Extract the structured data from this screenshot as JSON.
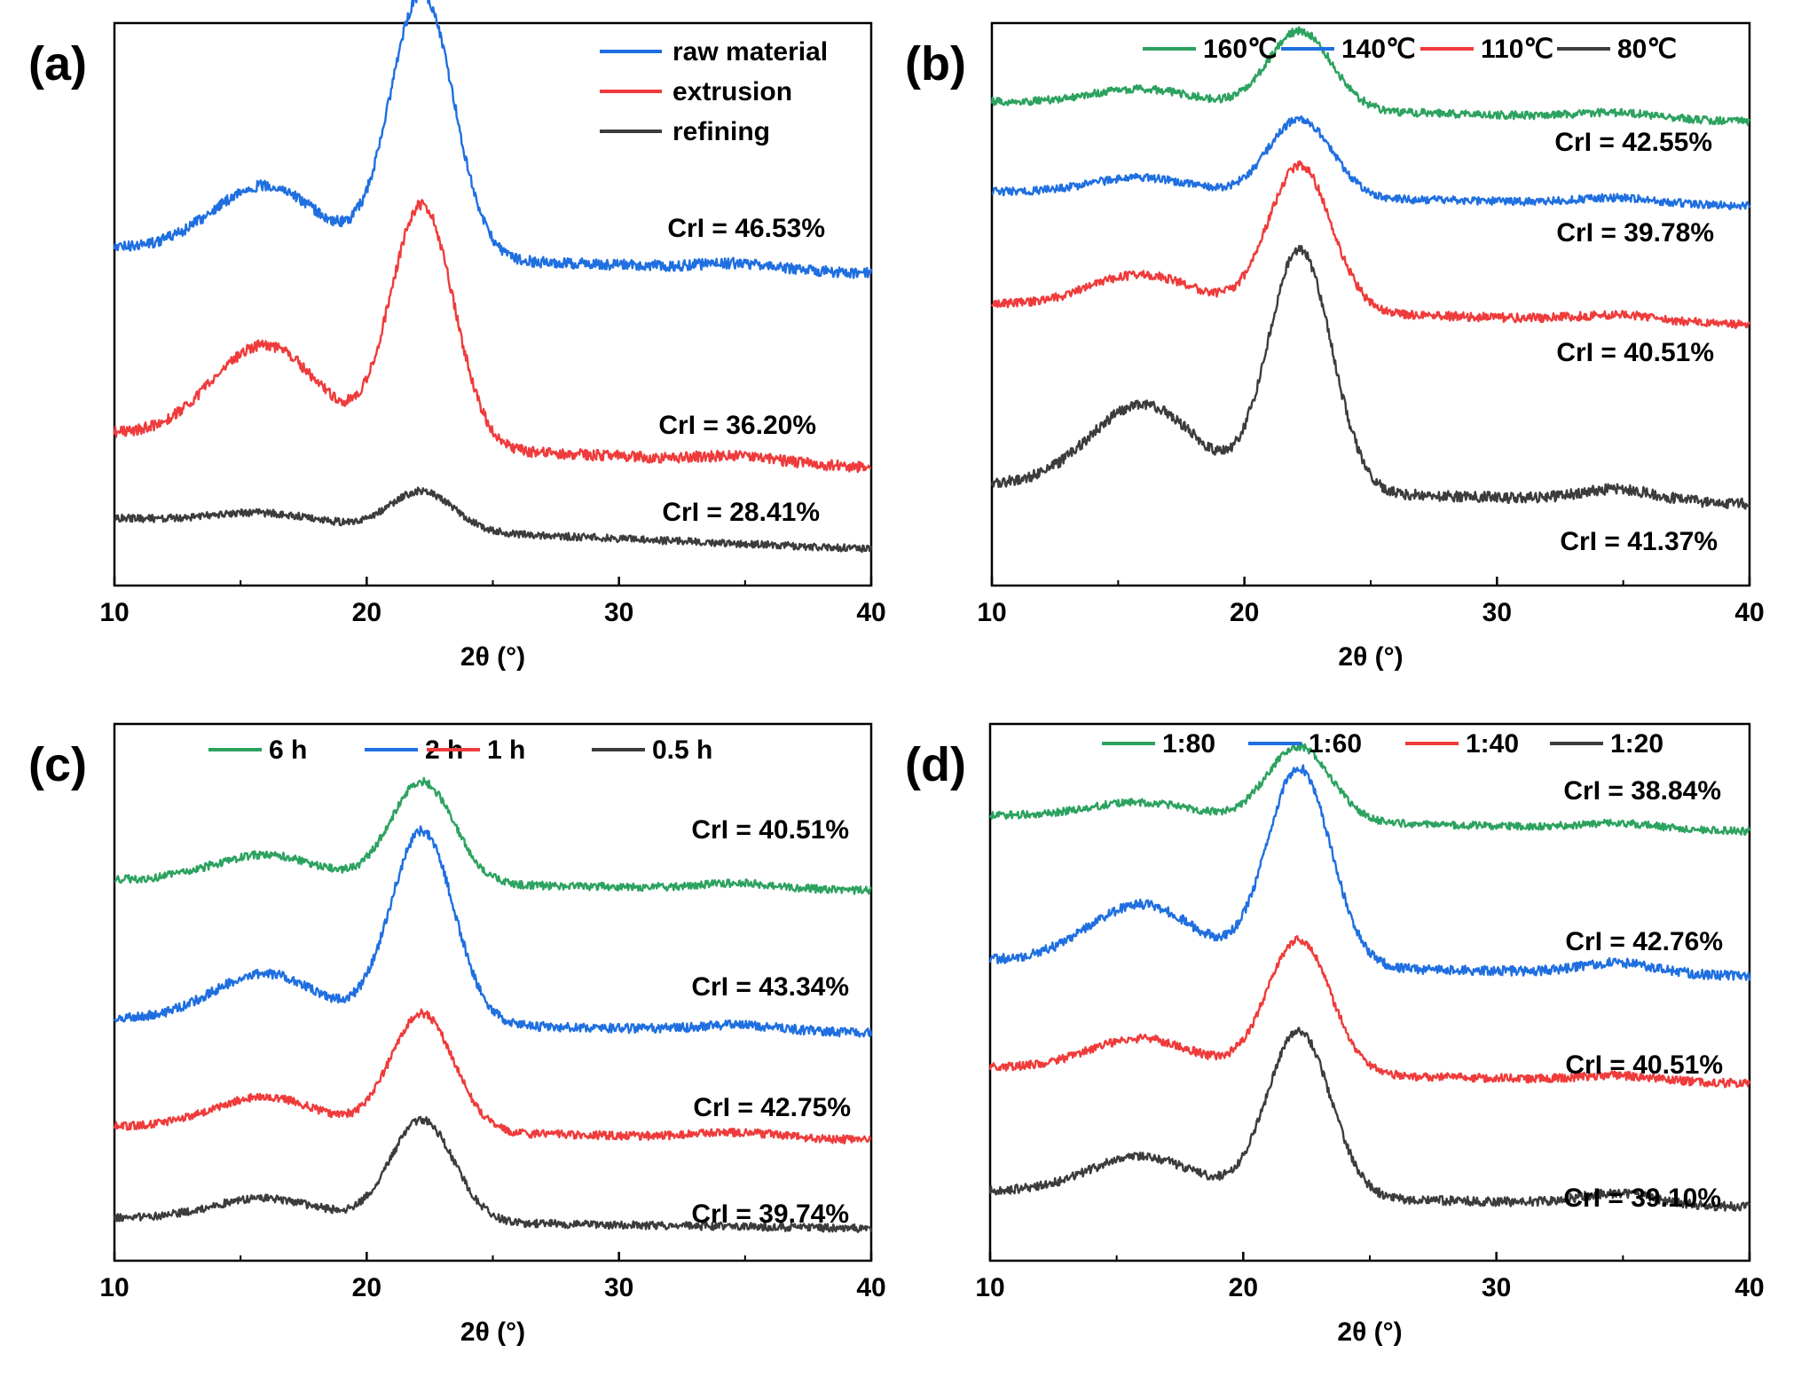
{
  "colors": {
    "green": "#2ca25f",
    "blue": "#1f6fe0",
    "red": "#ef3b3b",
    "gray": "#3c3c3c"
  },
  "chart_data": [
    {
      "type": "line",
      "panel": "(a)",
      "xlabel": "2θ (°)",
      "ylabel": "",
      "xlim": [
        10,
        40
      ],
      "xticks": [
        "10",
        "20",
        "30",
        "40"
      ],
      "legend_layout": "vertical",
      "legend_position": "top-right",
      "series": [
        {
          "name": "raw material",
          "color": "blue",
          "crl": "CrI = 46.53%",
          "baseline_start": 0.4,
          "baseline_end": 0.445,
          "peak1": 0.12,
          "peak2": 0.47,
          "peak3": 0.01
        },
        {
          "name": "extrusion",
          "color": "red",
          "crl": "CrI = 36.20%",
          "baseline_start": 0.73,
          "baseline_end": 0.79,
          "peak1": 0.17,
          "peak2": 0.43,
          "peak3": 0.01
        },
        {
          "name": "refining",
          "color": "gray",
          "crl": "CrI = 28.41%",
          "baseline_start": 0.88,
          "baseline_end": 0.935,
          "peak1": 0.02,
          "peak2": 0.07,
          "peak3": 0.0
        }
      ]
    },
    {
      "type": "line",
      "panel": "(b)",
      "xlabel": "2θ (°)",
      "ylabel": "",
      "xlim": [
        10,
        40
      ],
      "xticks": [
        "10",
        "20",
        "30",
        "40"
      ],
      "legend_layout": "horizontal",
      "legend_position": "top",
      "series": [
        {
          "name": "160℃",
          "color": "green",
          "crl": "CrI = 42.55%",
          "baseline_start": 0.14,
          "baseline_end": 0.175,
          "peak1": 0.03,
          "peak2": 0.14,
          "peak3": 0.01
        },
        {
          "name": "140℃",
          "color": "blue",
          "crl": "CrI = 39.78%",
          "baseline_start": 0.3,
          "baseline_end": 0.325,
          "peak1": 0.03,
          "peak2": 0.14,
          "peak3": 0.01
        },
        {
          "name": "110℃",
          "color": "red",
          "crl": "CrI = 40.51%",
          "baseline_start": 0.5,
          "baseline_end": 0.535,
          "peak1": 0.06,
          "peak2": 0.26,
          "peak3": 0.01
        },
        {
          "name": "80℃",
          "color": "gray",
          "crl": "CrI = 41.37%",
          "baseline_start": 0.82,
          "baseline_end": 0.855,
          "peak1": 0.15,
          "peak2": 0.43,
          "peak3": 0.02
        }
      ]
    },
    {
      "type": "line",
      "panel": "(c)",
      "xlabel": "2θ (°)",
      "ylabel": "",
      "xlim": [
        10,
        40
      ],
      "xticks": [
        "10",
        "20",
        "30",
        "40"
      ],
      "legend_layout": "horizontal",
      "legend_position": "top",
      "series": [
        {
          "name": "6 h",
          "color": "green",
          "crl": "CrI = 40.51%",
          "baseline_start": 0.29,
          "baseline_end": 0.31,
          "peak1": 0.05,
          "peak2": 0.19,
          "peak3": 0.01
        },
        {
          "name": "2 h",
          "color": "blue",
          "crl": "CrI = 43.34%",
          "baseline_start": 0.55,
          "baseline_end": 0.575,
          "peak1": 0.09,
          "peak2": 0.36,
          "peak3": 0.01
        },
        {
          "name": "1 h",
          "color": "red",
          "crl": "CrI = 42.75%",
          "baseline_start": 0.75,
          "baseline_end": 0.775,
          "peak1": 0.06,
          "peak2": 0.22,
          "peak3": 0.01
        },
        {
          "name": "0.5 h",
          "color": "gray",
          "crl": "CrI = 39.74%",
          "baseline_start": 0.92,
          "baseline_end": 0.94,
          "peak1": 0.04,
          "peak2": 0.19,
          "peak3": 0.0
        }
      ]
    },
    {
      "type": "line",
      "panel": "(d)",
      "xlabel": "2θ (°)",
      "ylabel": "",
      "xlim": [
        10,
        40
      ],
      "xticks": [
        "10",
        "20",
        "30",
        "40"
      ],
      "legend_layout": "horizontal",
      "legend_position": "top",
      "series": [
        {
          "name": "1:80",
          "color": "green",
          "crl": "CrI = 38.84%",
          "baseline_start": 0.17,
          "baseline_end": 0.2,
          "peak1": 0.03,
          "peak2": 0.14,
          "peak3": 0.01
        },
        {
          "name": "1:60",
          "color": "blue",
          "crl": "CrI = 42.76%",
          "baseline_start": 0.44,
          "baseline_end": 0.47,
          "peak1": 0.11,
          "peak2": 0.37,
          "peak3": 0.02
        },
        {
          "name": "1:40",
          "color": "red",
          "crl": "CrI = 40.51%",
          "baseline_start": 0.64,
          "baseline_end": 0.67,
          "peak1": 0.06,
          "peak2": 0.25,
          "peak3": 0.01
        },
        {
          "name": "1:20",
          "color": "gray",
          "crl": "CrI = 39.10%",
          "baseline_start": 0.87,
          "baseline_end": 0.9,
          "peak1": 0.07,
          "peak2": 0.31,
          "peak3": 0.02
        }
      ]
    }
  ]
}
